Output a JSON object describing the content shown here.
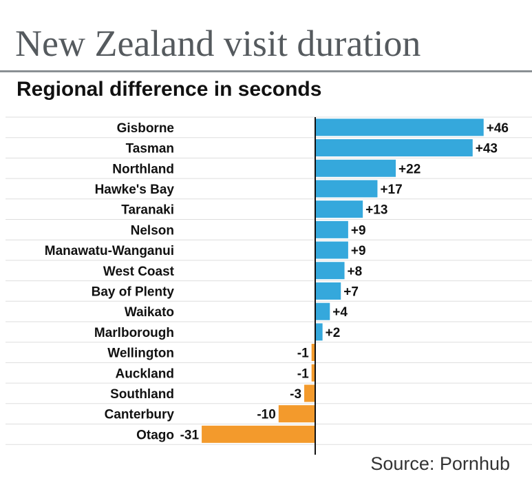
{
  "title": "New Zealand visit duration",
  "subtitle": "Regional difference in seconds",
  "source": "Source: Pornhub",
  "colors": {
    "positive": "#35a8dc",
    "negative": "#f39a2c",
    "axis": "#111111",
    "rowline": "#dddddd"
  },
  "chart_data": {
    "type": "bar",
    "orientation": "horizontal",
    "title": "New Zealand visit duration",
    "subtitle": "Regional difference in seconds",
    "categories": [
      "Gisborne",
      "Tasman",
      "Northland",
      "Hawke's Bay",
      "Taranaki",
      "Nelson",
      "Manawatu-Wanganui",
      "West Coast",
      "Bay of Plenty",
      "Waikato",
      "Marlborough",
      "Wellington",
      "Auckland",
      "Southland",
      "Canterbury",
      "Otago"
    ],
    "values": [
      46,
      43,
      22,
      17,
      13,
      9,
      9,
      8,
      7,
      4,
      2,
      -1,
      -1,
      -3,
      -10,
      -31
    ],
    "value_labels": [
      "+46",
      "+43",
      "+22",
      "+17",
      "+13",
      "+9",
      "+9",
      "+8",
      "+7",
      "+4",
      "+2",
      "-1",
      "-1",
      "-3",
      "-10",
      "-31"
    ],
    "xlim": [
      -31,
      46
    ],
    "grid": false,
    "legend": "none"
  }
}
